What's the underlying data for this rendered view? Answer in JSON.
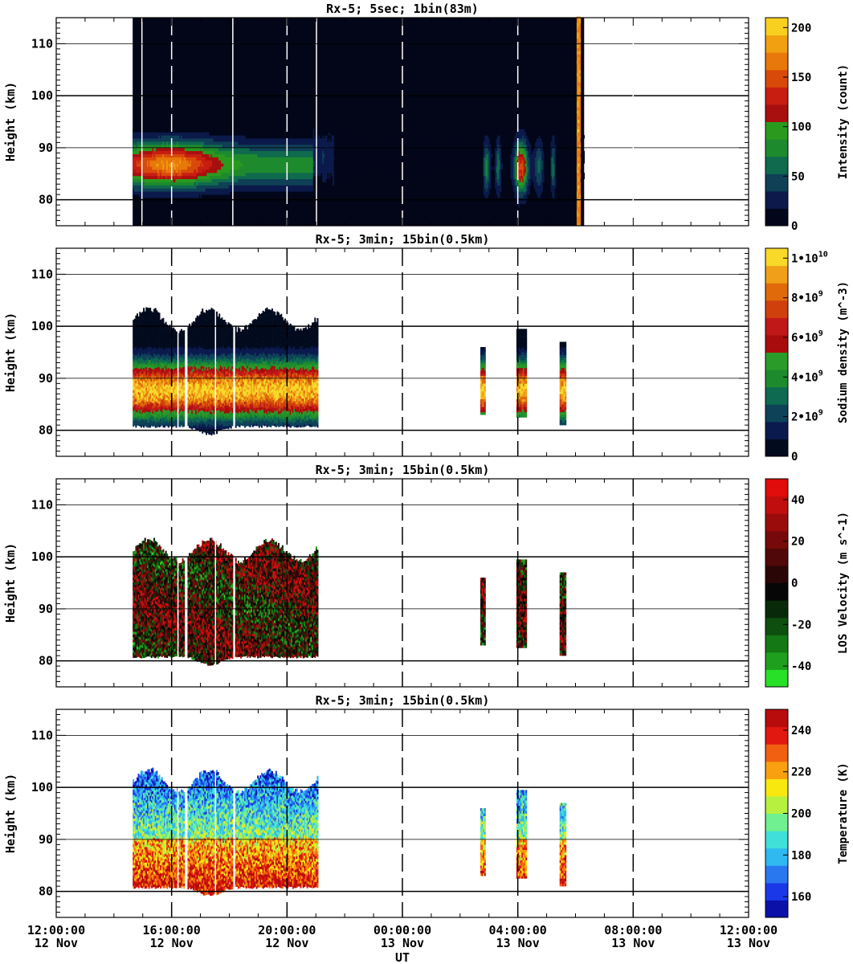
{
  "chart_data": [
    {
      "type": "heatmap",
      "title": "Rx-5;  5sec; 1bin(83m)",
      "xlabel": "",
      "ylabel": "Height (km)",
      "ylim": [
        75,
        115
      ],
      "yticks": [
        80,
        90,
        100,
        110
      ],
      "colorbar": {
        "label": "Intensity (count)",
        "ticks": [
          "0",
          "50",
          "100",
          "150",
          "200"
        ],
        "tick_values": [
          0,
          50,
          100,
          150,
          200
        ],
        "range": [
          0,
          210
        ],
        "colors": [
          "#02061a",
          "#0b1a4a",
          "#0f4056",
          "#0f6a4e",
          "#1e8a2e",
          "#2a9a1e",
          "#a80f0f",
          "#c81e12",
          "#d84a0a",
          "#e8780a",
          "#f0a010",
          "#f8d020"
        ]
      },
      "data_windows_ut": [
        [
          14.65,
          18.1
        ],
        [
          18.1,
          21.0
        ],
        [
          21.0,
          23.6
        ],
        [
          23.6,
          26.3
        ],
        [
          26.3,
          30.3
        ]
      ],
      "layer_peak_km": 86,
      "layer_peak_value": 190
    },
    {
      "type": "heatmap",
      "title": "Rx-5; 3min; 15bin(0.5km)",
      "xlabel": "",
      "ylabel": "Height (km)",
      "ylim": [
        75,
        115
      ],
      "yticks": [
        80,
        90,
        100,
        110
      ],
      "colorbar": {
        "label": "Sodium density (m^-3)",
        "ticks": [
          "0",
          "2•10",
          "4•10",
          "6•10",
          "8•10",
          "1•10"
        ],
        "tick_exponents": [
          "",
          "9",
          "9",
          "9",
          "9",
          "10"
        ],
        "tick_values": [
          0,
          2000000000,
          4000000000,
          6000000000,
          8000000000,
          10000000000
        ],
        "range": [
          0,
          10500000000
        ],
        "colors": [
          "#020a1e",
          "#0a1a4e",
          "#0e4258",
          "#0e6a50",
          "#1e8a2e",
          "#2a9a28",
          "#a80c0c",
          "#c01818",
          "#d0400c",
          "#e06a0a",
          "#f0a018",
          "#f8d828"
        ]
      },
      "data_windows_ut": [
        [
          14.65,
          16.45
        ],
        [
          16.55,
          18.1
        ],
        [
          18.2,
          21.05
        ],
        [
          26.7,
          26.85
        ],
        [
          27.95,
          28.3
        ],
        [
          29.45,
          29.65
        ]
      ],
      "top_km": 101,
      "bottom_km": 80.5
    },
    {
      "type": "heatmap",
      "title": "Rx-5; 3min; 15bin(0.5km)",
      "xlabel": "",
      "ylabel": "Height (km)",
      "ylim": [
        75,
        115
      ],
      "yticks": [
        80,
        90,
        100,
        110
      ],
      "colorbar": {
        "label": "LOS Velocity (m s^-1)",
        "ticks": [
          "-40",
          "-20",
          "0",
          "20",
          "40"
        ],
        "tick_values": [
          -40,
          -20,
          0,
          20,
          40
        ],
        "range": [
          -50,
          50
        ],
        "colors": [
          "#28e028",
          "#1ea01e",
          "#147814",
          "#0e4e0e",
          "#082a08",
          "#060606",
          "#2a0606",
          "#500808",
          "#760a0a",
          "#9a0c0c",
          "#c00e0e",
          "#e00c0c"
        ]
      },
      "data_windows_ut": [
        [
          14.65,
          16.45
        ],
        [
          16.55,
          18.1
        ],
        [
          18.2,
          21.05
        ],
        [
          26.7,
          26.85
        ],
        [
          27.95,
          28.3
        ],
        [
          29.45,
          29.65
        ]
      ]
    },
    {
      "type": "heatmap",
      "title": "Rx-5; 3min; 15bin(0.5km)",
      "xlabel": "UT",
      "ylabel": "Height (km)",
      "ylim": [
        75,
        115
      ],
      "yticks": [
        80,
        90,
        100,
        110
      ],
      "colorbar": {
        "label": "Temperature (K)",
        "ticks": [
          "160",
          "180",
          "200",
          "220",
          "240"
        ],
        "tick_values": [
          160,
          180,
          200,
          220,
          240
        ],
        "range": [
          150,
          250
        ],
        "colors": [
          "#0a10a8",
          "#1a38e8",
          "#2a78f0",
          "#30b8f0",
          "#40e0d8",
          "#70f090",
          "#b8f040",
          "#f8e810",
          "#f8a010",
          "#f06010",
          "#e01810",
          "#b80c0c"
        ]
      },
      "data_windows_ut": [
        [
          14.65,
          16.45
        ],
        [
          16.55,
          18.1
        ],
        [
          18.2,
          21.05
        ],
        [
          26.7,
          26.85
        ],
        [
          27.95,
          28.3
        ],
        [
          29.45,
          29.65
        ]
      ]
    }
  ],
  "x_axis": {
    "range_hours": [
      12,
      36
    ],
    "ticks": [
      {
        "time": "12:00:00",
        "date": "12 Nov",
        "hour": 12
      },
      {
        "time": "16:00:00",
        "date": "12 Nov",
        "hour": 16
      },
      {
        "time": "20:00:00",
        "date": "12 Nov",
        "hour": 20
      },
      {
        "time": "00:00:00",
        "date": "13 Nov",
        "hour": 24
      },
      {
        "time": "04:00:00",
        "date": "13 Nov",
        "hour": 28
      },
      {
        "time": "08:00:00",
        "date": "13 Nov",
        "hour": 32
      },
      {
        "time": "12:00:00",
        "date": "13 Nov",
        "hour": 36
      }
    ],
    "label": "UT"
  }
}
